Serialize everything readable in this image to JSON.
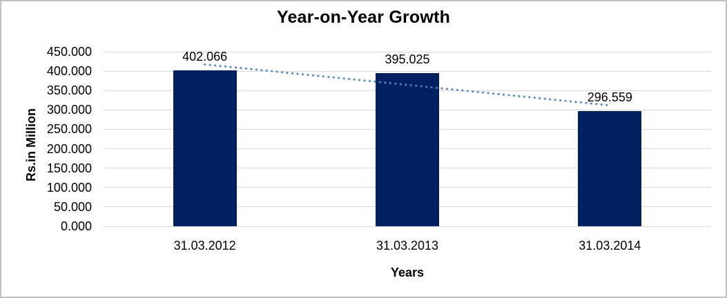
{
  "window": {
    "background": "#ffffff",
    "border_color": "#c0c0c0"
  },
  "chart_data": {
    "type": "bar",
    "title": "Year-on-Year Growth",
    "categories": [
      "31.03.2012",
      "31.03.2013",
      "31.03.2014"
    ],
    "values": [
      402.066,
      395.025,
      296.559
    ],
    "data_labels": [
      "402.066",
      "395.025",
      "296.559"
    ],
    "xlabel": "Years",
    "ylabel": "Rs.in Million",
    "ylim": [
      0,
      450
    ],
    "ytick_step": 50,
    "ytick_labels": [
      "0.000",
      "50.000",
      "100.000",
      "150.000",
      "200.000",
      "250.000",
      "300.000",
      "350.000",
      "400.000",
      "450.000"
    ],
    "grid": true,
    "legend": "none",
    "bar_color": "#002060",
    "gridline_color": "#d9d9d9",
    "trendline": {
      "type": "linear",
      "style": "dotted",
      "color": "#4d85c4"
    }
  }
}
